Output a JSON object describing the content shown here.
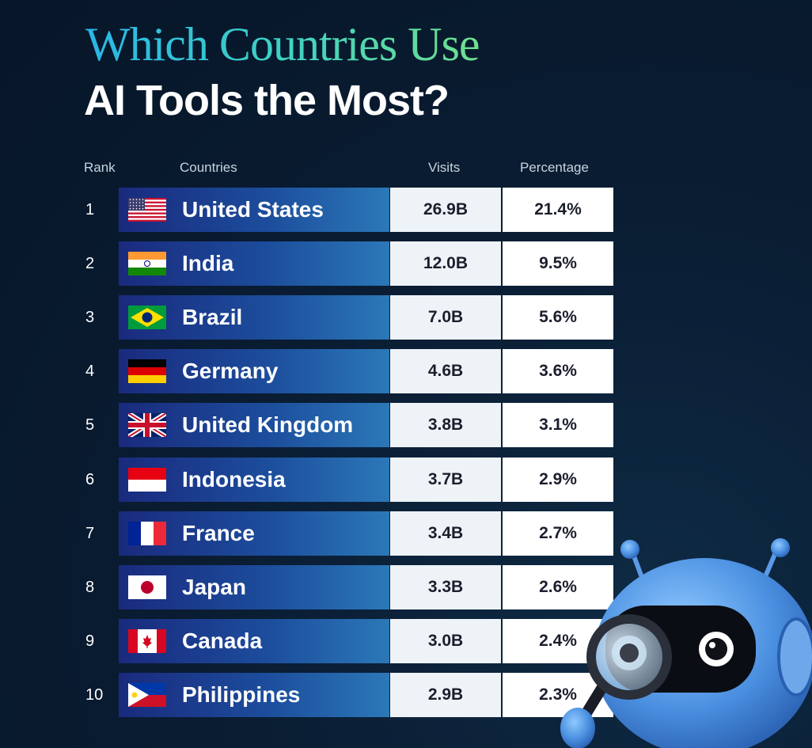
{
  "title": {
    "line1": "Which Countries Use",
    "line2": "AI Tools the Most?"
  },
  "headers": {
    "rank": "Rank",
    "country": "Countries",
    "visits": "Visits",
    "percentage": "Percentage"
  },
  "chart_data": {
    "type": "table",
    "columns": [
      "Rank",
      "Countries",
      "Visits",
      "Percentage"
    ],
    "rows": [
      {
        "rank": "1",
        "country": "United States",
        "visits": "26.9B",
        "percentage": "21.4%",
        "flag": "flag-us"
      },
      {
        "rank": "2",
        "country": "India",
        "visits": "12.0B",
        "percentage": "9.5%",
        "flag": "flag-india"
      },
      {
        "rank": "3",
        "country": "Brazil",
        "visits": "7.0B",
        "percentage": "5.6%",
        "flag": "flag-brazil"
      },
      {
        "rank": "4",
        "country": "Germany",
        "visits": "4.6B",
        "percentage": "3.6%",
        "flag": "flag-germany"
      },
      {
        "rank": "5",
        "country": "United Kingdom",
        "visits": "3.8B",
        "percentage": "3.1%",
        "flag": "flag-uk"
      },
      {
        "rank": "6",
        "country": "Indonesia",
        "visits": "3.7B",
        "percentage": "2.9%",
        "flag": "flag-indonesia"
      },
      {
        "rank": "7",
        "country": "France",
        "visits": "3.4B",
        "percentage": "2.7%",
        "flag": "flag-france"
      },
      {
        "rank": "8",
        "country": "Japan",
        "visits": "3.3B",
        "percentage": "2.6%",
        "flag": "flag-japan"
      },
      {
        "rank": "9",
        "country": "Canada",
        "visits": "3.0B",
        "percentage": "2.4%",
        "flag": "flag-canada"
      },
      {
        "rank": "10",
        "country": "Philippines",
        "visits": "2.9B",
        "percentage": "2.3%",
        "flag": "flag-philippines"
      }
    ]
  },
  "colors": {
    "background": "#0a1d33",
    "title_gradient_start": "#29b6e6",
    "title_gradient_end": "#6fe08e",
    "bar_start": "#1a2a7e",
    "bar_end": "#2b78b8"
  },
  "illustration": "robot-with-magnifying-glass-icon"
}
